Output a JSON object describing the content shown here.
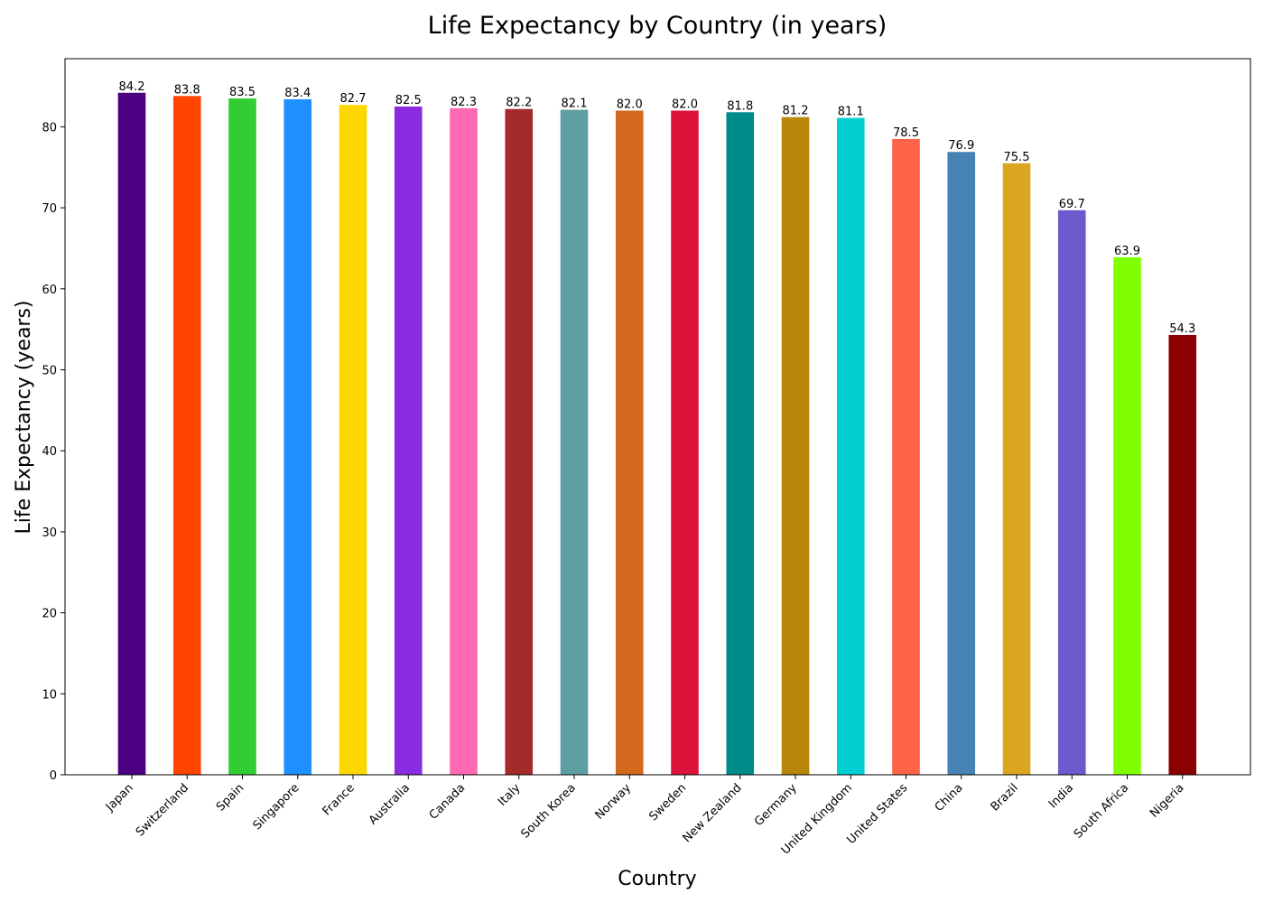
{
  "chart_data": {
    "type": "bar",
    "title": "Life Expectancy by Country (in years)",
    "xlabel": "Country",
    "ylabel": "Life Expectancy (years)",
    "ylim": [
      0,
      88.41
    ],
    "yticks": [
      0,
      10,
      20,
      30,
      40,
      50,
      60,
      70,
      80
    ],
    "grid": false,
    "categories": [
      "Japan",
      "Switzerland",
      "Spain",
      "Singapore",
      "France",
      "Australia",
      "Canada",
      "Italy",
      "South Korea",
      "Norway",
      "Sweden",
      "New Zealand",
      "Germany",
      "United Kingdom",
      "United States",
      "China",
      "Brazil",
      "India",
      "South Africa",
      "Nigeria"
    ],
    "values": [
      84.2,
      83.8,
      83.5,
      83.4,
      82.7,
      82.5,
      82.3,
      82.2,
      82.1,
      82.0,
      82.0,
      81.8,
      81.2,
      81.1,
      78.5,
      76.9,
      75.5,
      69.7,
      63.9,
      54.3
    ],
    "value_labels": [
      "84.2",
      "83.8",
      "83.5",
      "83.4",
      "82.7",
      "82.5",
      "82.3",
      "82.2",
      "82.1",
      "82.0",
      "82.0",
      "81.8",
      "81.2",
      "81.1",
      "78.5",
      "76.9",
      "75.5",
      "69.7",
      "63.9",
      "54.3"
    ],
    "colors": [
      "#4B0082",
      "#FF4500",
      "#32CD32",
      "#1E90FF",
      "#FFD700",
      "#8A2BE2",
      "#FF69B4",
      "#A52A2A",
      "#5F9EA0",
      "#D2691E",
      "#DC143C",
      "#008B8B",
      "#B8860B",
      "#00CED1",
      "#FF6347",
      "#4682B4",
      "#DAA520",
      "#6A5ACD",
      "#7FFF00",
      "#8B0000"
    ]
  }
}
